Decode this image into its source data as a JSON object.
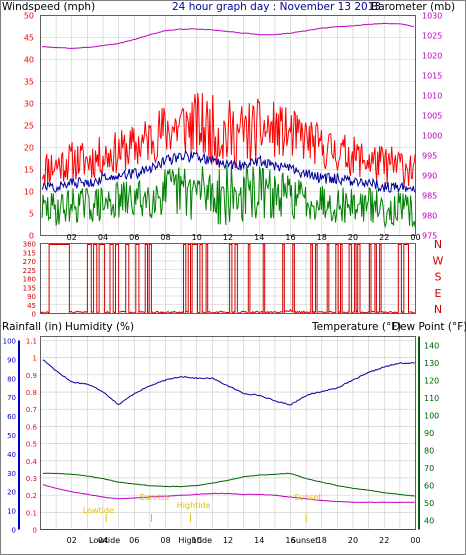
{
  "header": {
    "title": "24 hour graph day : November 13 2013",
    "left_label": "Windspeed (mph)",
    "right_label": "Barometer (mb)"
  },
  "colors": {
    "wind_avg": "#008000",
    "wind_gust": "#ff0000",
    "barometer": "#c000c0",
    "wind_dir": "#d00000",
    "humidity": "#0000a0",
    "temperature": "#006000",
    "dewpoint": "#c000c0",
    "rain": "#ff0000",
    "tide": "#e0c000",
    "grid": "#c8c8c8",
    "axis_left_blue": "#0000c0"
  },
  "x_axis": {
    "ticks": [
      "02",
      "04",
      "06",
      "08",
      "10",
      "12",
      "14",
      "16",
      "18",
      "20",
      "22",
      "00"
    ]
  },
  "chart_data": [
    {
      "type": "line",
      "title": "24 hour graph day : November 13 2013",
      "left_axis": {
        "label": "Windspeed (mph)",
        "range": [
          0,
          50
        ],
        "ticks": [
          0,
          5,
          10,
          15,
          20,
          25,
          30,
          35,
          40,
          45,
          50
        ]
      },
      "right_axis": {
        "label": "Barometer (mb)",
        "range": [
          975,
          1030
        ],
        "ticks": [
          975,
          980,
          985,
          990,
          995,
          1000,
          1005,
          1010,
          1015,
          1020,
          1025,
          1030
        ]
      },
      "x": [
        0,
        1,
        2,
        3,
        4,
        5,
        6,
        7,
        8,
        9,
        10,
        11,
        12,
        13,
        14,
        15,
        16,
        17,
        18,
        19,
        20,
        21,
        22,
        23,
        24
      ],
      "series": [
        {
          "name": "Barometer",
          "axis": "right",
          "values": [
            1022.2,
            1022.0,
            1021.8,
            1022.0,
            1022.5,
            1023.0,
            1024.0,
            1025.2,
            1026.2,
            1026.6,
            1026.6,
            1026.4,
            1026.0,
            1025.6,
            1025.2,
            1025.2,
            1025.6,
            1026.2,
            1026.8,
            1027.2,
            1027.4,
            1027.8,
            1028.0,
            1027.9,
            1027.2
          ]
        },
        {
          "name": "Gust",
          "axis": "left",
          "values": [
            15,
            16,
            17,
            17,
            18,
            19,
            20,
            22,
            24,
            25,
            25,
            24,
            23,
            23,
            24,
            24,
            23,
            22,
            20,
            19,
            18,
            17,
            16,
            16,
            15
          ]
        },
        {
          "name": "Average",
          "axis": "left",
          "values": [
            11,
            11,
            12,
            12,
            13,
            14,
            14,
            15,
            17,
            18,
            18,
            17,
            16,
            16,
            17,
            16,
            15,
            14,
            13,
            13,
            12,
            12,
            11,
            11,
            10
          ]
        },
        {
          "name": "Low",
          "axis": "left",
          "values": [
            6,
            6,
            7,
            7,
            7,
            8,
            8,
            9,
            10,
            10,
            10,
            10,
            9,
            9,
            10,
            9,
            9,
            8,
            8,
            7,
            7,
            7,
            6,
            6,
            5
          ]
        }
      ]
    },
    {
      "type": "line",
      "right_axis": {
        "ticks": [
          "N",
          "W",
          "S",
          "E",
          "N"
        ]
      },
      "left_axis": {
        "range": [
          0,
          360
        ],
        "ticks": [
          0,
          45,
          90,
          135,
          180,
          225,
          270,
          315,
          360
        ]
      },
      "segments_high": [
        [
          0.55,
          1.85
        ],
        [
          3.0,
          3.25
        ],
        [
          3.4,
          3.6
        ],
        [
          3.75,
          4.1
        ],
        [
          4.45,
          4.65
        ],
        [
          4.8,
          5.0
        ],
        [
          5.45,
          5.65
        ],
        [
          6.1,
          6.3
        ],
        [
          6.7,
          6.85
        ],
        [
          6.95,
          7.1
        ],
        [
          9.15,
          9.3
        ],
        [
          9.45,
          9.6
        ],
        [
          9.7,
          10.05
        ],
        [
          10.2,
          10.35
        ],
        [
          10.6,
          10.7
        ],
        [
          12.1,
          12.25
        ],
        [
          12.45,
          12.6
        ],
        [
          13.3,
          13.4
        ],
        [
          14.25,
          14.35
        ],
        [
          15.5,
          15.6
        ],
        [
          16.15,
          16.25
        ],
        [
          17.3,
          17.4
        ],
        [
          17.6,
          17.7
        ],
        [
          18.35,
          18.45
        ],
        [
          18.9,
          19.05
        ],
        [
          19.2,
          19.3
        ],
        [
          19.75,
          19.9
        ],
        [
          20.1,
          20.2
        ],
        [
          20.3,
          20.45
        ],
        [
          21.05,
          21.15
        ],
        [
          21.4,
          21.5
        ],
        [
          21.7,
          21.8
        ],
        [
          22.9,
          23.1
        ],
        [
          23.25,
          23.55
        ]
      ]
    },
    {
      "type": "line",
      "labels": {
        "rainfall": "Rainfall (in)",
        "humidity": "Humidity (%)",
        "temperature": "Temperature (°F)",
        "dewpoint": "Dew Point (°F)"
      },
      "left_axis_humidity": {
        "range": [
          0,
          100
        ],
        "ticks": [
          0,
          10,
          20,
          30,
          40,
          50,
          60,
          70,
          80,
          90,
          100
        ]
      },
      "left_axis_rain": {
        "range": [
          0,
          1.1
        ],
        "ticks": [
          0,
          0.1,
          0.2,
          0.3,
          0.4,
          0.5,
          0.6,
          0.7,
          0.8,
          0.9,
          1,
          1.1
        ]
      },
      "right_axis": {
        "label": "Temperature (°F)",
        "range": [
          35,
          145
        ],
        "ticks": [
          40,
          50,
          60,
          70,
          80,
          90,
          100,
          110,
          120,
          130,
          140
        ]
      },
      "x": [
        0,
        1,
        2,
        3,
        4,
        5,
        6,
        7,
        8,
        9,
        10,
        11,
        12,
        13,
        14,
        15,
        16,
        17,
        18,
        19,
        20,
        21,
        22,
        23,
        24
      ],
      "series": [
        {
          "name": "Humidity",
          "axis": "humidity",
          "values": [
            91,
            84,
            78,
            77,
            73,
            66,
            72,
            76,
            79,
            81,
            80,
            80,
            76,
            72,
            71,
            68,
            66,
            71,
            73,
            75,
            79,
            83,
            86,
            88,
            88
          ]
        },
        {
          "name": "Temperature",
          "axis": "right",
          "values": [
            67,
            67,
            66.5,
            65.5,
            64,
            62,
            61,
            60,
            59.5,
            59.5,
            60,
            61.5,
            63,
            65,
            66,
            66.5,
            67,
            64,
            62,
            60,
            58.5,
            57.5,
            56,
            55,
            54
          ]
        },
        {
          "name": "Dew Point",
          "axis": "right",
          "values": [
            61,
            58.5,
            56.5,
            55,
            53.5,
            52.5,
            53,
            53.5,
            54,
            54.5,
            55,
            55.5,
            55.5,
            55,
            55,
            54.5,
            53.5,
            52.5,
            51.5,
            51,
            50.5,
            50.5,
            50.5,
            50.5,
            50.5
          ]
        },
        {
          "name": "Rainfall",
          "axis": "rain",
          "values": [
            0,
            0,
            0,
            0,
            0,
            0,
            0,
            0,
            0,
            0,
            0,
            0,
            0,
            0,
            0,
            0,
            0,
            0,
            0,
            0,
            0,
            0,
            0,
            0,
            0
          ]
        }
      ],
      "tide_events": [
        {
          "label": "Lowtide",
          "time": 3.2,
          "text_x": 3.7,
          "marker_x": 4.2
        },
        {
          "label": "Sunrise",
          "time": 7.0,
          "text_x": 7.3,
          "marker_x": 7.1
        },
        {
          "label": "Hightide",
          "time": 9.5,
          "text_x": 9.8,
          "marker_x": 9.6
        },
        {
          "label": "Sunset",
          "time": 16.8,
          "text_x": 17.1,
          "marker_x": 17.0
        }
      ],
      "bottom_labels": [
        "Lowtide",
        "Hightide",
        "Sunset"
      ]
    }
  ]
}
